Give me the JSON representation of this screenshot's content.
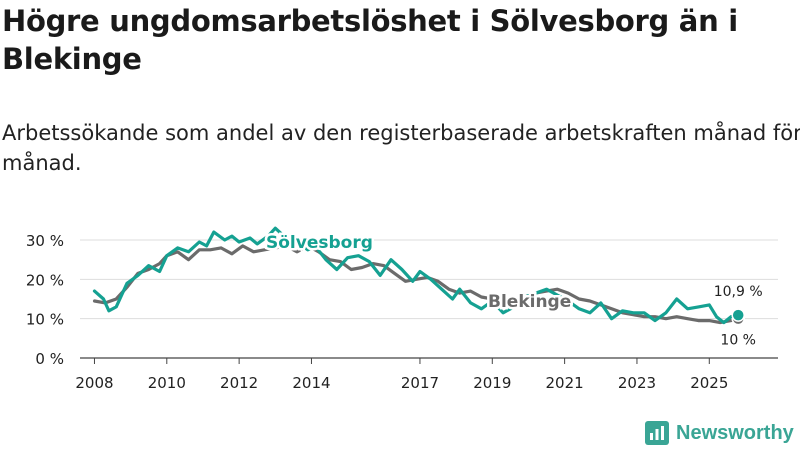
{
  "header": {
    "title": "Högre ungdomsarbetslöshet i Sölvesborg än i Blekinge",
    "subtitle": "Arbetssökande som andel av den registerbaserade arbetskraften månad för månad."
  },
  "brand": {
    "name": "Newsworthy",
    "logo_icon": "bar-chart-logo-icon",
    "color": "#3aa595"
  },
  "chart_data": {
    "type": "line",
    "title": "Högre ungdomsarbetslöshet i Sölvesborg än i Blekinge",
    "xlabel": "",
    "ylabel": "",
    "xlim": [
      2007.6,
      2026.9
    ],
    "ylim": [
      0,
      30
    ],
    "yticks": [
      0,
      10,
      20,
      30
    ],
    "ytick_labels": [
      "0 %",
      "10 %",
      "20 %",
      "30 %"
    ],
    "xticks": [
      2008,
      2010,
      2012,
      2014,
      2017,
      2019,
      2021,
      2023,
      2025
    ],
    "xtick_labels": [
      "2008",
      "2010",
      "2012",
      "2014",
      "2017",
      "2019",
      "2021",
      "2023",
      "2025"
    ],
    "grid": true,
    "series": [
      {
        "name": "Blekinge",
        "label": "Blekinge",
        "color": "#6b6b6b",
        "end_label": "10 %",
        "points": [
          [
            2008.0,
            14.5
          ],
          [
            2008.3,
            14.0
          ],
          [
            2008.6,
            15.0
          ],
          [
            2008.9,
            18.0
          ],
          [
            2009.2,
            21.5
          ],
          [
            2009.5,
            22.5
          ],
          [
            2009.8,
            24.0
          ],
          [
            2010.0,
            26.0
          ],
          [
            2010.3,
            27.0
          ],
          [
            2010.6,
            25.0
          ],
          [
            2010.9,
            27.5
          ],
          [
            2011.2,
            27.5
          ],
          [
            2011.5,
            28.0
          ],
          [
            2011.8,
            26.5
          ],
          [
            2012.1,
            28.5
          ],
          [
            2012.4,
            27.0
          ],
          [
            2012.7,
            27.5
          ],
          [
            2013.0,
            28.0
          ],
          [
            2013.3,
            28.5
          ],
          [
            2013.6,
            27.0
          ],
          [
            2013.9,
            28.5
          ],
          [
            2014.2,
            27.0
          ],
          [
            2014.5,
            25.0
          ],
          [
            2014.8,
            24.5
          ],
          [
            2015.1,
            22.5
          ],
          [
            2015.4,
            23.0
          ],
          [
            2015.7,
            24.0
          ],
          [
            2016.0,
            23.5
          ],
          [
            2016.3,
            21.5
          ],
          [
            2016.6,
            19.5
          ],
          [
            2016.9,
            20.0
          ],
          [
            2017.2,
            20.5
          ],
          [
            2017.5,
            19.5
          ],
          [
            2017.8,
            17.5
          ],
          [
            2018.1,
            16.5
          ],
          [
            2018.4,
            17.0
          ],
          [
            2018.7,
            15.5
          ],
          [
            2019.0,
            15.0
          ],
          [
            2019.3,
            14.5
          ],
          [
            2019.6,
            15.0
          ],
          [
            2019.9,
            15.5
          ],
          [
            2020.2,
            16.5
          ],
          [
            2020.5,
            17.0
          ],
          [
            2020.8,
            17.5
          ],
          [
            2021.1,
            16.5
          ],
          [
            2021.4,
            15.0
          ],
          [
            2021.7,
            14.5
          ],
          [
            2022.0,
            13.5
          ],
          [
            2022.3,
            12.5
          ],
          [
            2022.6,
            11.5
          ],
          [
            2022.9,
            11.0
          ],
          [
            2023.2,
            10.5
          ],
          [
            2023.5,
            10.5
          ],
          [
            2023.8,
            10.0
          ],
          [
            2024.1,
            10.5
          ],
          [
            2024.4,
            10.0
          ],
          [
            2024.7,
            9.5
          ],
          [
            2025.0,
            9.5
          ],
          [
            2025.3,
            9.0
          ],
          [
            2025.6,
            9.5
          ],
          [
            2025.8,
            10.0
          ]
        ]
      },
      {
        "name": "Sölvesborg",
        "label": "Sölvesborg",
        "color": "#15a192",
        "end_label": "10,9 %",
        "points": [
          [
            2008.0,
            17.0
          ],
          [
            2008.25,
            15.0
          ],
          [
            2008.4,
            12.0
          ],
          [
            2008.6,
            13.0
          ],
          [
            2008.9,
            19.0
          ],
          [
            2009.2,
            21.0
          ],
          [
            2009.5,
            23.5
          ],
          [
            2009.8,
            22.0
          ],
          [
            2010.0,
            26.0
          ],
          [
            2010.3,
            28.0
          ],
          [
            2010.6,
            27.0
          ],
          [
            2010.9,
            29.5
          ],
          [
            2011.1,
            28.5
          ],
          [
            2011.3,
            32.0
          ],
          [
            2011.6,
            30.0
          ],
          [
            2011.8,
            31.0
          ],
          [
            2012.0,
            29.5
          ],
          [
            2012.3,
            30.5
          ],
          [
            2012.5,
            29.0
          ],
          [
            2012.8,
            31.0
          ],
          [
            2013.0,
            33.0
          ],
          [
            2013.3,
            30.5
          ],
          [
            2013.6,
            29.5
          ],
          [
            2013.9,
            27.5
          ],
          [
            2014.1,
            28.5
          ],
          [
            2014.4,
            25.0
          ],
          [
            2014.7,
            22.5
          ],
          [
            2015.0,
            25.5
          ],
          [
            2015.3,
            26.0
          ],
          [
            2015.6,
            24.5
          ],
          [
            2015.9,
            21.0
          ],
          [
            2016.2,
            25.0
          ],
          [
            2016.5,
            22.5
          ],
          [
            2016.8,
            19.5
          ],
          [
            2017.0,
            22.0
          ],
          [
            2017.3,
            20.0
          ],
          [
            2017.6,
            17.5
          ],
          [
            2017.9,
            15.0
          ],
          [
            2018.1,
            17.5
          ],
          [
            2018.4,
            14.0
          ],
          [
            2018.7,
            12.5
          ],
          [
            2019.0,
            14.5
          ],
          [
            2019.3,
            11.5
          ],
          [
            2019.6,
            13.0
          ],
          [
            2019.9,
            15.5
          ],
          [
            2020.2,
            16.5
          ],
          [
            2020.5,
            17.5
          ],
          [
            2020.8,
            16.0
          ],
          [
            2021.1,
            14.5
          ],
          [
            2021.4,
            12.5
          ],
          [
            2021.7,
            11.5
          ],
          [
            2022.0,
            14.0
          ],
          [
            2022.3,
            10.0
          ],
          [
            2022.6,
            12.0
          ],
          [
            2022.9,
            11.5
          ],
          [
            2023.2,
            11.5
          ],
          [
            2023.5,
            9.5
          ],
          [
            2023.8,
            11.5
          ],
          [
            2024.1,
            15.0
          ],
          [
            2024.4,
            12.5
          ],
          [
            2024.7,
            13.0
          ],
          [
            2025.0,
            13.5
          ],
          [
            2025.2,
            10.5
          ],
          [
            2025.4,
            9.0
          ],
          [
            2025.6,
            10.5
          ],
          [
            2025.8,
            10.9
          ]
        ]
      }
    ]
  }
}
